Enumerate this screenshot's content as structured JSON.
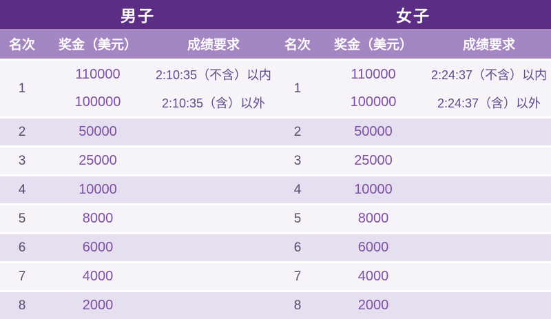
{
  "chart_data": [
    {
      "type": "table",
      "title": "男子",
      "columns": [
        "名次",
        "奖金（美元）",
        "成绩要求"
      ],
      "rows": [
        [
          "1",
          "110000",
          "2:10:35（不含）以内"
        ],
        [
          "1",
          "100000",
          "2:10:35（含）以外"
        ],
        [
          "2",
          "50000",
          ""
        ],
        [
          "3",
          "25000",
          ""
        ],
        [
          "4",
          "10000",
          ""
        ],
        [
          "5",
          "8000",
          ""
        ],
        [
          "6",
          "6000",
          ""
        ],
        [
          "7",
          "4000",
          ""
        ],
        [
          "8",
          "2000",
          ""
        ]
      ]
    },
    {
      "type": "table",
      "title": "女子",
      "columns": [
        "名次",
        "奖金（美元）",
        "成绩要求"
      ],
      "rows": [
        [
          "1",
          "110000",
          "2:24:37（不含）以内"
        ],
        [
          "1",
          "100000",
          "2:24:37（含）以外"
        ],
        [
          "2",
          "50000",
          ""
        ],
        [
          "3",
          "25000",
          ""
        ],
        [
          "4",
          "10000",
          ""
        ],
        [
          "5",
          "8000",
          ""
        ],
        [
          "6",
          "6000",
          ""
        ],
        [
          "7",
          "4000",
          ""
        ],
        [
          "8",
          "2000",
          ""
        ]
      ]
    }
  ],
  "tables": {
    "men": {
      "title": "男子",
      "columns": {
        "rank": "名次",
        "prize": "奖金（美元）",
        "requirement": "成绩要求"
      },
      "rank1": {
        "rank": "1",
        "line1": {
          "prize": "110000",
          "requirement": "2:10:35（不含）以内"
        },
        "line2": {
          "prize": "100000",
          "requirement": "2:10:35（含）以外"
        }
      },
      "rows": [
        {
          "rank": "2",
          "prize": "50000"
        },
        {
          "rank": "3",
          "prize": "25000"
        },
        {
          "rank": "4",
          "prize": "10000"
        },
        {
          "rank": "5",
          "prize": "8000"
        },
        {
          "rank": "6",
          "prize": "6000"
        },
        {
          "rank": "7",
          "prize": "4000"
        },
        {
          "rank": "8",
          "prize": "2000"
        }
      ]
    },
    "women": {
      "title": "女子",
      "columns": {
        "rank": "名次",
        "prize": "奖金（美元）",
        "requirement": "成绩要求"
      },
      "rank1": {
        "rank": "1",
        "line1": {
          "prize": "110000",
          "requirement": "2:24:37（不含）以内"
        },
        "line2": {
          "prize": "100000",
          "requirement": "2:24:37（含）以外"
        }
      },
      "rows": [
        {
          "rank": "2",
          "prize": "50000"
        },
        {
          "rank": "3",
          "prize": "25000"
        },
        {
          "rank": "4",
          "prize": "10000"
        },
        {
          "rank": "5",
          "prize": "8000"
        },
        {
          "rank": "6",
          "prize": "6000"
        },
        {
          "rank": "7",
          "prize": "4000"
        },
        {
          "rank": "8",
          "prize": "2000"
        }
      ]
    }
  },
  "colors": {
    "group_header_bg": "#5b2d84",
    "column_header_bg": "#a486c2",
    "header_text": "#ffffff",
    "row_light_bg": "#f7f4f9",
    "row_shaded_bg": "#e6dff0",
    "rank_text": "#5a4a6e",
    "prize_text": "#7d4fa5",
    "requirement_text": "#5e4a8a"
  }
}
